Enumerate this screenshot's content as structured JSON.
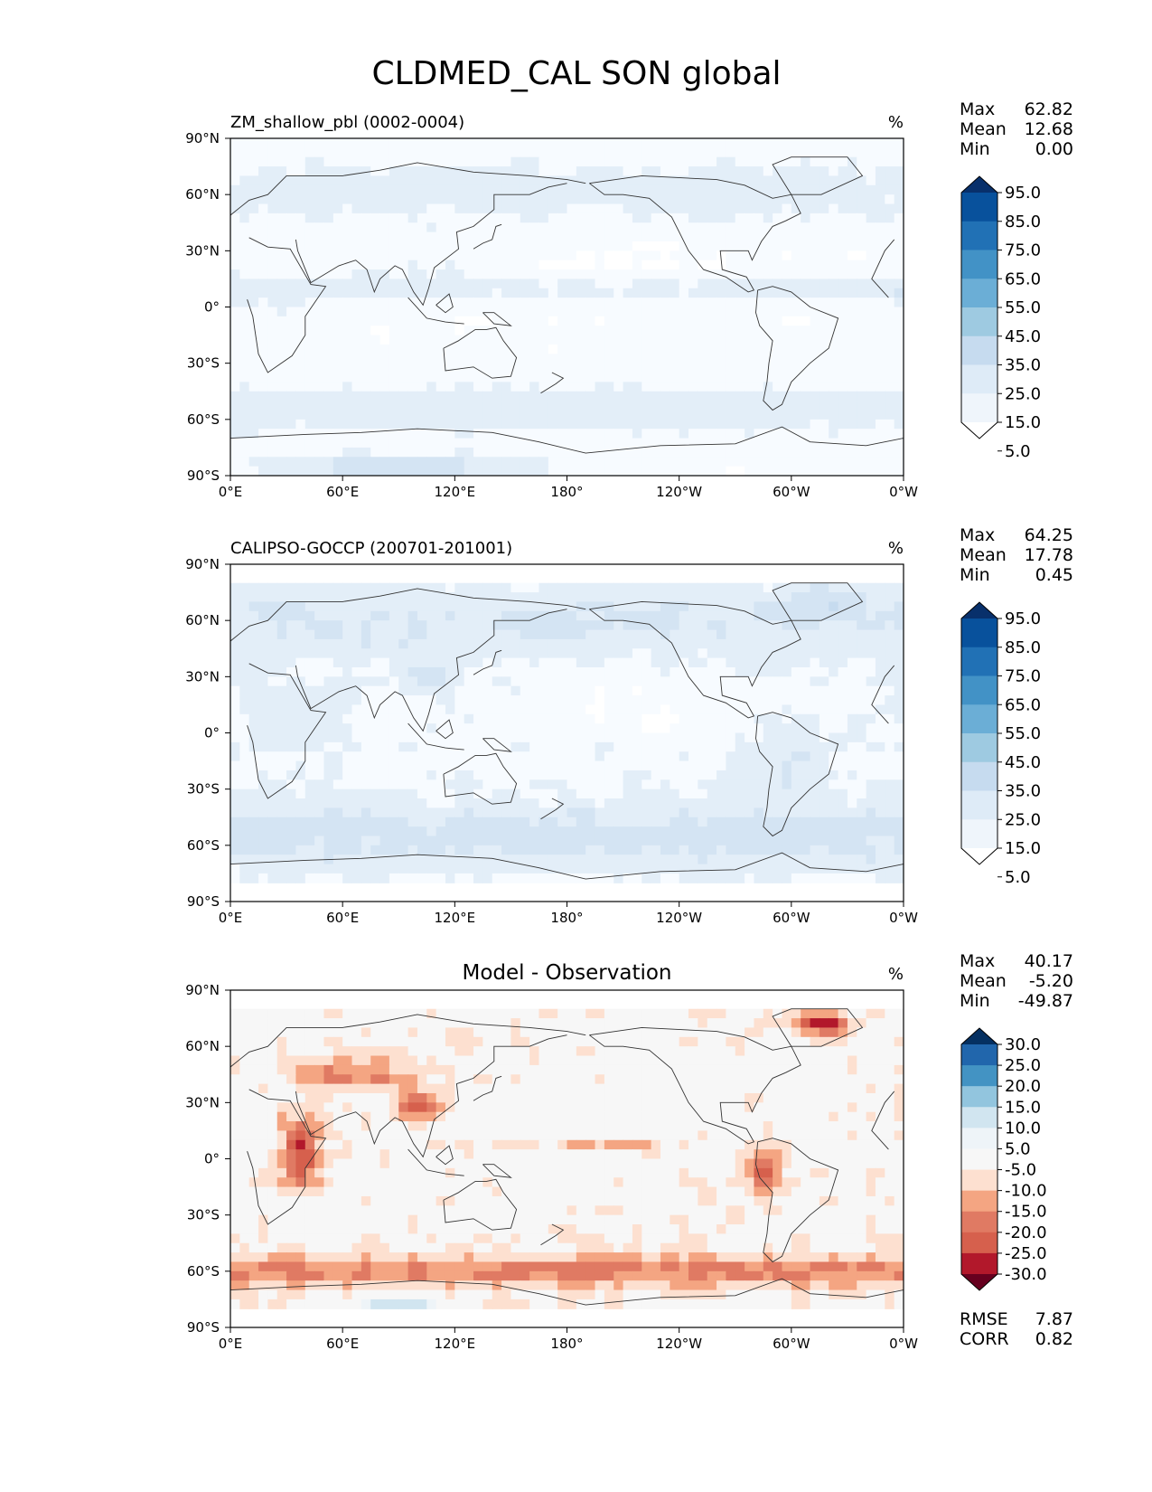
{
  "title": "CLDMED_CAL SON global",
  "chart_data": [
    {
      "type": "heatmap",
      "subtitle_left": "ZM_shallow_pbl (0002-0004)",
      "subtitle_right": "%",
      "x_ticks": [
        "0°E",
        "60°E",
        "120°E",
        "180°",
        "120°W",
        "60°W",
        "0°W"
      ],
      "y_ticks": [
        "90°N",
        "60°N",
        "30°N",
        "0°",
        "30°S",
        "60°S",
        "90°S"
      ],
      "stats": [
        {
          "label": "Max",
          "value": "62.82"
        },
        {
          "label": "Mean",
          "value": "12.68"
        },
        {
          "label": "Min",
          "value": "0.00"
        }
      ],
      "colorbar": {
        "labels": [
          "95.0",
          "85.0",
          "75.0",
          "65.0",
          "55.0",
          "45.0",
          "35.0",
          "25.0",
          "15.0",
          "5.0"
        ],
        "colors": [
          "#08306b",
          "#08519c",
          "#2171b5",
          "#4292c6",
          "#6baed6",
          "#9ecae1",
          "#c6dbef",
          "#deebf7",
          "#eff5fb",
          "#ffffff"
        ],
        "extend": "both"
      },
      "field_profile": "model"
    },
    {
      "type": "heatmap",
      "subtitle_left": "CALIPSO-GOCCP (200701-201001)",
      "subtitle_right": "%",
      "x_ticks": [
        "0°E",
        "60°E",
        "120°E",
        "180°",
        "120°W",
        "60°W",
        "0°W"
      ],
      "y_ticks": [
        "90°N",
        "60°N",
        "30°N",
        "0°",
        "30°S",
        "60°S",
        "90°S"
      ],
      "stats": [
        {
          "label": "Max",
          "value": "64.25"
        },
        {
          "label": "Mean",
          "value": "17.78"
        },
        {
          "label": "Min",
          "value": "0.45"
        }
      ],
      "colorbar": {
        "labels": [
          "95.0",
          "85.0",
          "75.0",
          "65.0",
          "55.0",
          "45.0",
          "35.0",
          "25.0",
          "15.0",
          "5.0"
        ],
        "colors": [
          "#08306b",
          "#08519c",
          "#2171b5",
          "#4292c6",
          "#6baed6",
          "#9ecae1",
          "#c6dbef",
          "#deebf7",
          "#eff5fb",
          "#ffffff"
        ],
        "extend": "both"
      },
      "field_profile": "obs"
    },
    {
      "type": "heatmap",
      "subtitle_center": "Model - Observation",
      "subtitle_right": "%",
      "x_ticks": [
        "0°E",
        "60°E",
        "120°E",
        "180°",
        "120°W",
        "60°W",
        "0°W"
      ],
      "y_ticks": [
        "90°N",
        "60°N",
        "30°N",
        "0°",
        "30°S",
        "60°S",
        "90°S"
      ],
      "stats": [
        {
          "label": "Max",
          "value": "40.17"
        },
        {
          "label": "Mean",
          "value": "-5.20"
        },
        {
          "label": "Min",
          "value": "-49.87"
        }
      ],
      "colorbar": {
        "labels": [
          "30.0",
          "25.0",
          "20.0",
          "15.0",
          "10.0",
          "5.0",
          "-5.0",
          "-10.0",
          "-15.0",
          "-20.0",
          "-25.0",
          "-30.0"
        ],
        "colors": [
          "#053061",
          "#2166ac",
          "#4393c3",
          "#92c5de",
          "#d1e5f0",
          "#eef4f8",
          "#f7f7f7",
          "#fde0d0",
          "#f4a582",
          "#e07a63",
          "#d6604d",
          "#b2182b",
          "#67001f"
        ],
        "extend": "both"
      },
      "bottom_stats": [
        {
          "label": "RMSE",
          "value": "7.87"
        },
        {
          "label": "CORR",
          "value": "0.82"
        }
      ],
      "field_profile": "diff"
    }
  ]
}
